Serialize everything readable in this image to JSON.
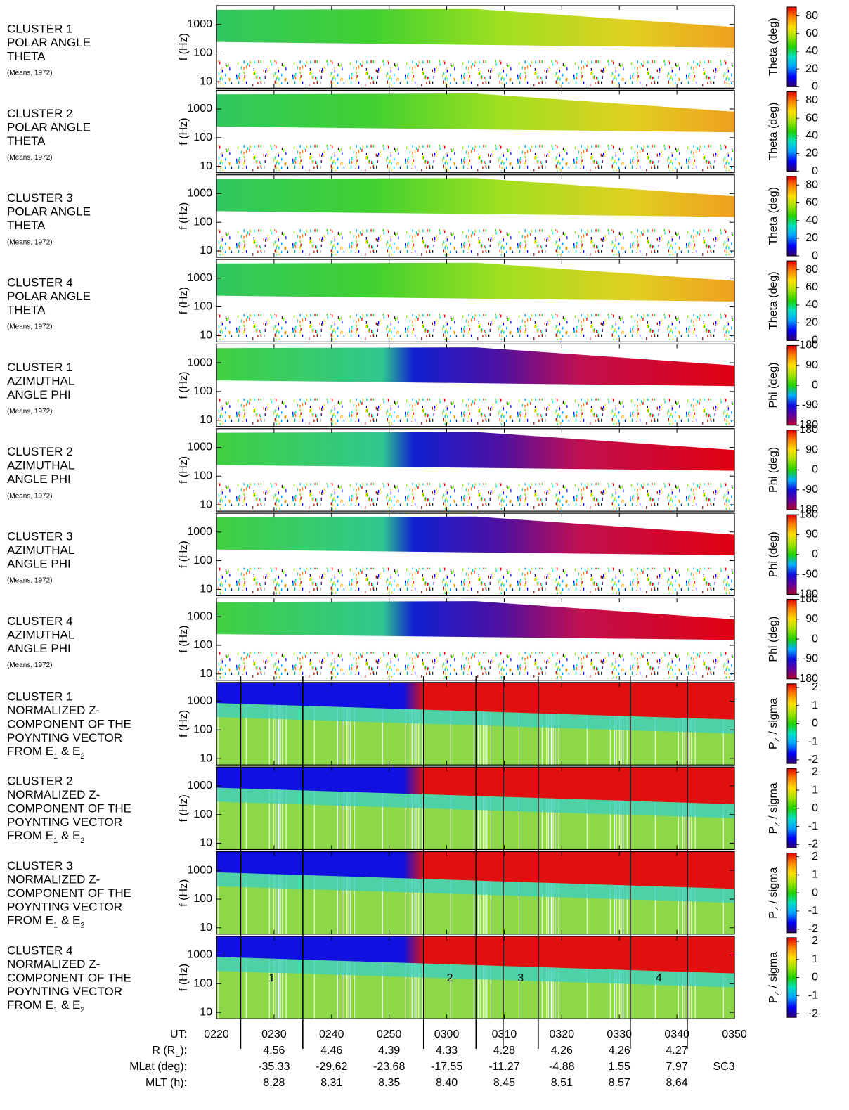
{
  "chart_data": [
    {
      "type": "spectrogram",
      "title_lines": [
        "CLUSTER 1",
        "POLAR ANGLE",
        "THETA"
      ],
      "citation": "(Means, 1972)",
      "ylabel": "f (Hz)",
      "ylog": true,
      "ylim": [
        6,
        4500
      ],
      "yticks": [
        10,
        100,
        1000
      ],
      "cbar_label": [
        {
          "text": "Theta (deg)"
        }
      ],
      "clim": [
        0,
        90
      ],
      "cticks": [
        0,
        20,
        40,
        60,
        80
      ],
      "colormap": "jet",
      "filled": false
    },
    {
      "type": "spectrogram",
      "title_lines": [
        "CLUSTER 2",
        "POLAR ANGLE",
        "THETA"
      ],
      "citation": "(Means, 1972)",
      "ylabel": "f (Hz)",
      "ylog": true,
      "ylim": [
        6,
        4500
      ],
      "yticks": [
        10,
        100,
        1000
      ],
      "cbar_label": [
        {
          "text": "Theta (deg)"
        }
      ],
      "clim": [
        0,
        90
      ],
      "cticks": [
        0,
        20,
        40,
        60,
        80
      ],
      "colormap": "jet",
      "filled": false
    },
    {
      "type": "spectrogram",
      "title_lines": [
        "CLUSTER 3",
        "POLAR ANGLE",
        "THETA"
      ],
      "citation": "(Means, 1972)",
      "ylabel": "f (Hz)",
      "ylog": true,
      "ylim": [
        6,
        4500
      ],
      "yticks": [
        10,
        100,
        1000
      ],
      "cbar_label": [
        {
          "text": "Theta (deg)"
        }
      ],
      "clim": [
        0,
        90
      ],
      "cticks": [
        0,
        20,
        40,
        60,
        80
      ],
      "colormap": "jet",
      "filled": false
    },
    {
      "type": "spectrogram",
      "title_lines": [
        "CLUSTER 4",
        "POLAR ANGLE",
        "THETA"
      ],
      "citation": "(Means, 1972)",
      "ylabel": "f (Hz)",
      "ylog": true,
      "ylim": [
        6,
        4500
      ],
      "yticks": [
        10,
        100,
        1000
      ],
      "cbar_label": [
        {
          "text": "Theta (deg)"
        }
      ],
      "clim": [
        0,
        90
      ],
      "cticks": [
        0,
        20,
        40,
        60,
        80
      ],
      "colormap": "jet",
      "filled": false
    },
    {
      "type": "spectrogram",
      "title_lines": [
        "CLUSTER 1",
        "AZIMUTHAL",
        "ANGLE PHI"
      ],
      "citation": "(Means, 1972)",
      "ylabel": "f (Hz)",
      "ylog": true,
      "ylim": [
        6,
        4500
      ],
      "yticks": [
        10,
        100,
        1000
      ],
      "cbar_label": [
        {
          "text": "Phi (deg)"
        }
      ],
      "clim": [
        -180,
        180
      ],
      "cticks": [
        -180,
        -90,
        0,
        90,
        180
      ],
      "colormap": "cyclic",
      "filled": false
    },
    {
      "type": "spectrogram",
      "title_lines": [
        "CLUSTER 2",
        "AZIMUTHAL",
        "ANGLE PHI"
      ],
      "citation": "(Means, 1972)",
      "ylabel": "f (Hz)",
      "ylog": true,
      "ylim": [
        6,
        4500
      ],
      "yticks": [
        10,
        100,
        1000
      ],
      "cbar_label": [
        {
          "text": "Phi (deg)"
        }
      ],
      "clim": [
        -180,
        180
      ],
      "cticks": [
        -180,
        -90,
        0,
        90,
        180
      ],
      "colormap": "cyclic",
      "filled": false
    },
    {
      "type": "spectrogram",
      "title_lines": [
        "CLUSTER 3",
        "AZIMUTHAL",
        "ANGLE PHI"
      ],
      "citation": "(Means, 1972)",
      "ylabel": "f (Hz)",
      "ylog": true,
      "ylim": [
        6,
        4500
      ],
      "yticks": [
        10,
        100,
        1000
      ],
      "cbar_label": [
        {
          "text": "Phi (deg)"
        }
      ],
      "clim": [
        -180,
        180
      ],
      "cticks": [
        -180,
        -90,
        0,
        90,
        180
      ],
      "colormap": "cyclic",
      "filled": false
    },
    {
      "type": "spectrogram",
      "title_lines": [
        "CLUSTER 4",
        "AZIMUTHAL",
        "ANGLE PHI"
      ],
      "citation": "(Means, 1972)",
      "ylabel": "f (Hz)",
      "ylog": true,
      "ylim": [
        6,
        4500
      ],
      "yticks": [
        10,
        100,
        1000
      ],
      "cbar_label": [
        {
          "text": "Phi (deg)"
        }
      ],
      "clim": [
        -180,
        180
      ],
      "cticks": [
        -180,
        -90,
        0,
        90,
        180
      ],
      "colormap": "cyclic",
      "filled": false
    },
    {
      "type": "spectrogram",
      "title_lines": [
        "CLUSTER 1",
        "NORMALIZED Z-",
        "COMPONENT OF THE",
        "POYNTING VECTOR",
        [
          {
            "text": "FROM E"
          },
          {
            "text": "1",
            "sub": true
          },
          {
            "text": " & E"
          },
          {
            "text": "2",
            "sub": true
          }
        ]
      ],
      "ylabel": "f (Hz)",
      "ylog": true,
      "ylim": [
        6,
        4500
      ],
      "yticks": [
        10,
        100,
        1000
      ],
      "cbar_label": [
        {
          "text": "P"
        },
        {
          "text": "Z",
          "sub": true
        },
        {
          "text": " / sigma"
        }
      ],
      "clim": [
        -2.2,
        2.2
      ],
      "cticks": [
        -2,
        -1,
        0,
        1,
        2
      ],
      "colormap": "jet",
      "filled": true
    },
    {
      "type": "spectrogram",
      "title_lines": [
        "CLUSTER 2",
        "NORMALIZED Z-",
        "COMPONENT OF THE",
        "POYNTING VECTOR",
        [
          {
            "text": "FROM E"
          },
          {
            "text": "1",
            "sub": true
          },
          {
            "text": " & E"
          },
          {
            "text": "2",
            "sub": true
          }
        ]
      ],
      "ylabel": "f (Hz)",
      "ylog": true,
      "ylim": [
        6,
        4500
      ],
      "yticks": [
        10,
        100,
        1000
      ],
      "cbar_label": [
        {
          "text": "P"
        },
        {
          "text": "Z",
          "sub": true
        },
        {
          "text": " / sigma"
        }
      ],
      "clim": [
        -2.2,
        2.2
      ],
      "cticks": [
        -2,
        -1,
        0,
        1,
        2
      ],
      "colormap": "jet",
      "filled": true
    },
    {
      "type": "spectrogram",
      "title_lines": [
        "CLUSTER 3",
        "NORMALIZED Z-",
        "COMPONENT OF THE",
        "POYNTING VECTOR",
        [
          {
            "text": "FROM E"
          },
          {
            "text": "1",
            "sub": true
          },
          {
            "text": " & E"
          },
          {
            "text": "2",
            "sub": true
          }
        ]
      ],
      "ylabel": "f (Hz)",
      "ylog": true,
      "ylim": [
        6,
        4500
      ],
      "yticks": [
        10,
        100,
        1000
      ],
      "cbar_label": [
        {
          "text": "P"
        },
        {
          "text": "Z",
          "sub": true
        },
        {
          "text": " / sigma"
        }
      ],
      "clim": [
        -2.2,
        2.2
      ],
      "cticks": [
        -2,
        -1,
        0,
        1,
        2
      ],
      "colormap": "jet",
      "filled": true
    },
    {
      "type": "spectrogram",
      "title_lines": [
        "CLUSTER 4",
        "NORMALIZED Z-",
        "COMPONENT OF THE",
        "POYNTING VECTOR",
        [
          {
            "text": "FROM E"
          },
          {
            "text": "1",
            "sub": true
          },
          {
            "text": " & E"
          },
          {
            "text": "2",
            "sub": true
          }
        ]
      ],
      "ylabel": "f (Hz)",
      "ylog": true,
      "ylim": [
        6,
        4500
      ],
      "yticks": [
        10,
        100,
        1000
      ],
      "cbar_label": [
        {
          "text": "P"
        },
        {
          "text": "Z",
          "sub": true
        },
        {
          "text": " / sigma"
        }
      ],
      "clim": [
        -2.2,
        2.2
      ],
      "cticks": [
        -2,
        -1,
        0,
        1,
        2
      ],
      "colormap": "jet",
      "filled": true
    }
  ],
  "x_axis": {
    "xlim": [
      140,
      230
    ],
    "xticks": [
      {
        "value": 140,
        "label": "0220"
      },
      {
        "value": 150,
        "label": "0230"
      },
      {
        "value": 160,
        "label": "0240"
      },
      {
        "value": 170,
        "label": "0250"
      },
      {
        "value": 180,
        "label": "0300"
      },
      {
        "value": 190,
        "label": "0310"
      },
      {
        "value": 200,
        "label": "0320"
      },
      {
        "value": 210,
        "label": "0330"
      },
      {
        "value": 220,
        "label": "0340"
      },
      {
        "value": 230,
        "label": "0350"
      }
    ],
    "ut_label": [
      {
        "text": "UT:"
      }
    ],
    "rows": [
      {
        "label": [
          {
            "text": "R (R"
          },
          {
            "text": "E",
            "sub": true
          },
          {
            "text": "):"
          }
        ],
        "values": [
          "4.56",
          "4.46",
          "4.39",
          "4.33",
          "4.28",
          "4.26",
          "4.26",
          "4.27"
        ]
      },
      {
        "label": [
          {
            "text": "MLat (deg):"
          }
        ],
        "values": [
          "-35.33",
          "-29.62",
          "-23.68",
          "-17.55",
          "-11.27",
          "-4.88",
          "1.55",
          "7.97"
        ]
      },
      {
        "label": [
          {
            "text": "MLT (h):"
          }
        ],
        "values": [
          "8.28",
          "8.31",
          "8.35",
          "8.40",
          "8.45",
          "8.51",
          "8.57",
          "8.64"
        ]
      }
    ],
    "spacecraft": "SC3",
    "events": [
      144.2,
      155.0,
      176.0,
      185.1,
      189.8,
      195.9,
      211.9,
      221.8
    ],
    "event_labels": [
      "1",
      "2",
      "3",
      "4"
    ]
  }
}
